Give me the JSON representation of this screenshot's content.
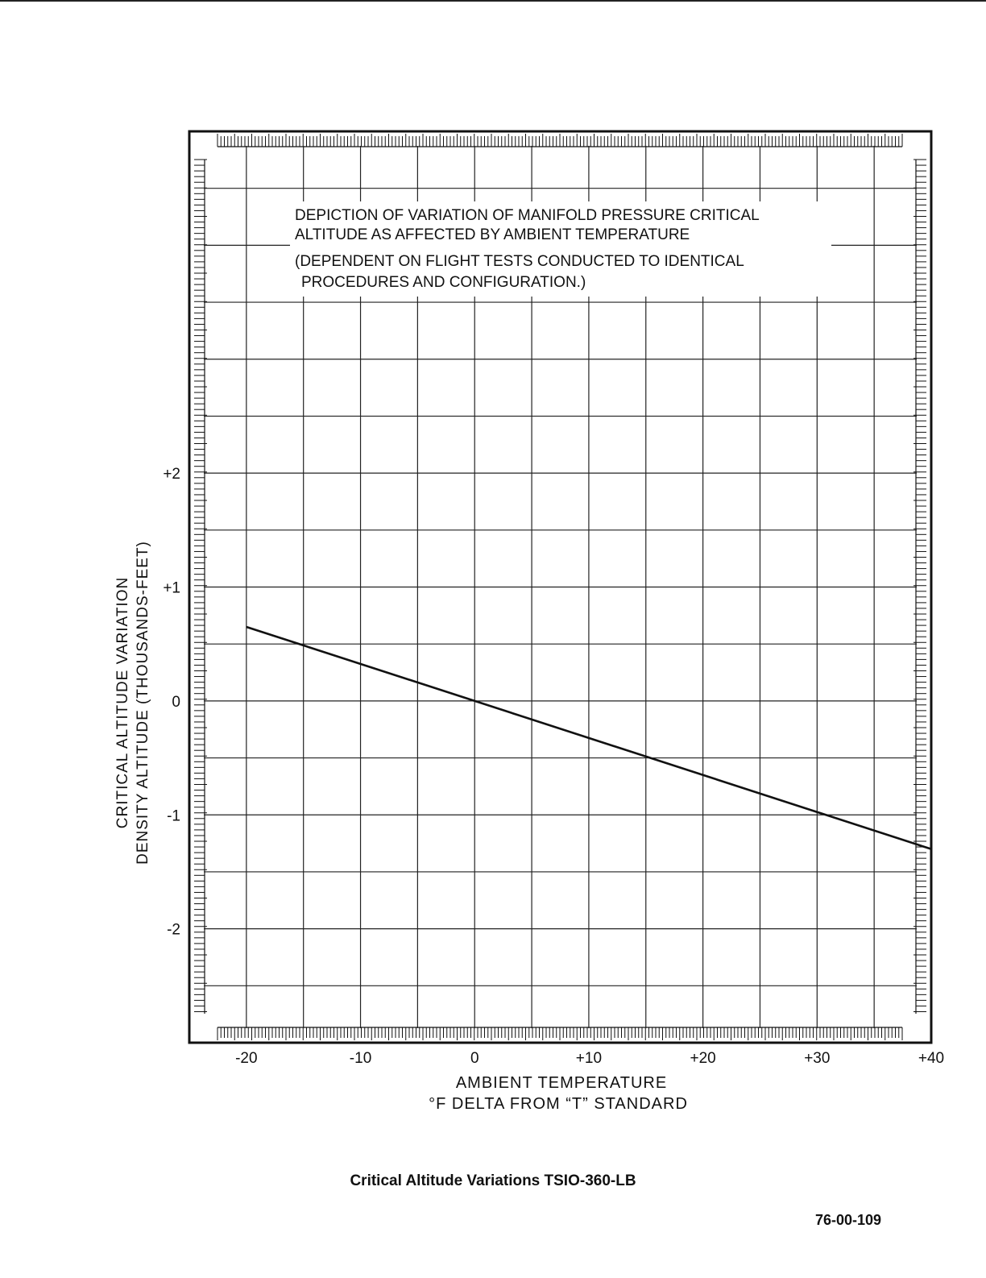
{
  "chart_data": {
    "type": "line",
    "annotation": {
      "line1": "DEPICTION OF  VARIATION OF MANIFOLD PRESSURE CRITICAL",
      "line2": "ALTITUDE AS AFFECTED BY AMBIENT TEMPERATURE",
      "line3": "(DEPENDENT ON FLIGHT TESTS CONDUCTED TO IDENTICAL",
      "line4": "PROCEDURES AND  CONFIGURATION.)"
    },
    "xlabel": [
      "AMBIENT TEMPERATURE",
      "°F DELTA FROM “T” STANDARD"
    ],
    "ylabel": [
      "CRITICAL ALTITUDE VARIATION",
      "DENSITY ALTITUDE (THOUSANDS-FEET)"
    ],
    "xlim": [
      -25,
      40
    ],
    "ylim": [
      -3,
      5
    ],
    "x_ticks": [
      "-20",
      "-10",
      "0",
      "+10",
      "+20",
      "+30",
      "+40"
    ],
    "x_tick_values": [
      -20,
      -10,
      0,
      10,
      20,
      30,
      40
    ],
    "y_ticks": [
      "+2",
      "+1",
      "0",
      "-1",
      "-2"
    ],
    "y_tick_values": [
      2,
      1,
      0,
      -1,
      -2
    ],
    "grid": true,
    "series": [
      {
        "x": [
          -20,
          40
        ],
        "y": [
          0.65,
          -1.3
        ]
      }
    ],
    "colors": {
      "line": "#111111",
      "grid": "#222222"
    }
  },
  "caption": "Critical Altitude Variations TSIO-360-LB",
  "document_number": "76-00-109"
}
